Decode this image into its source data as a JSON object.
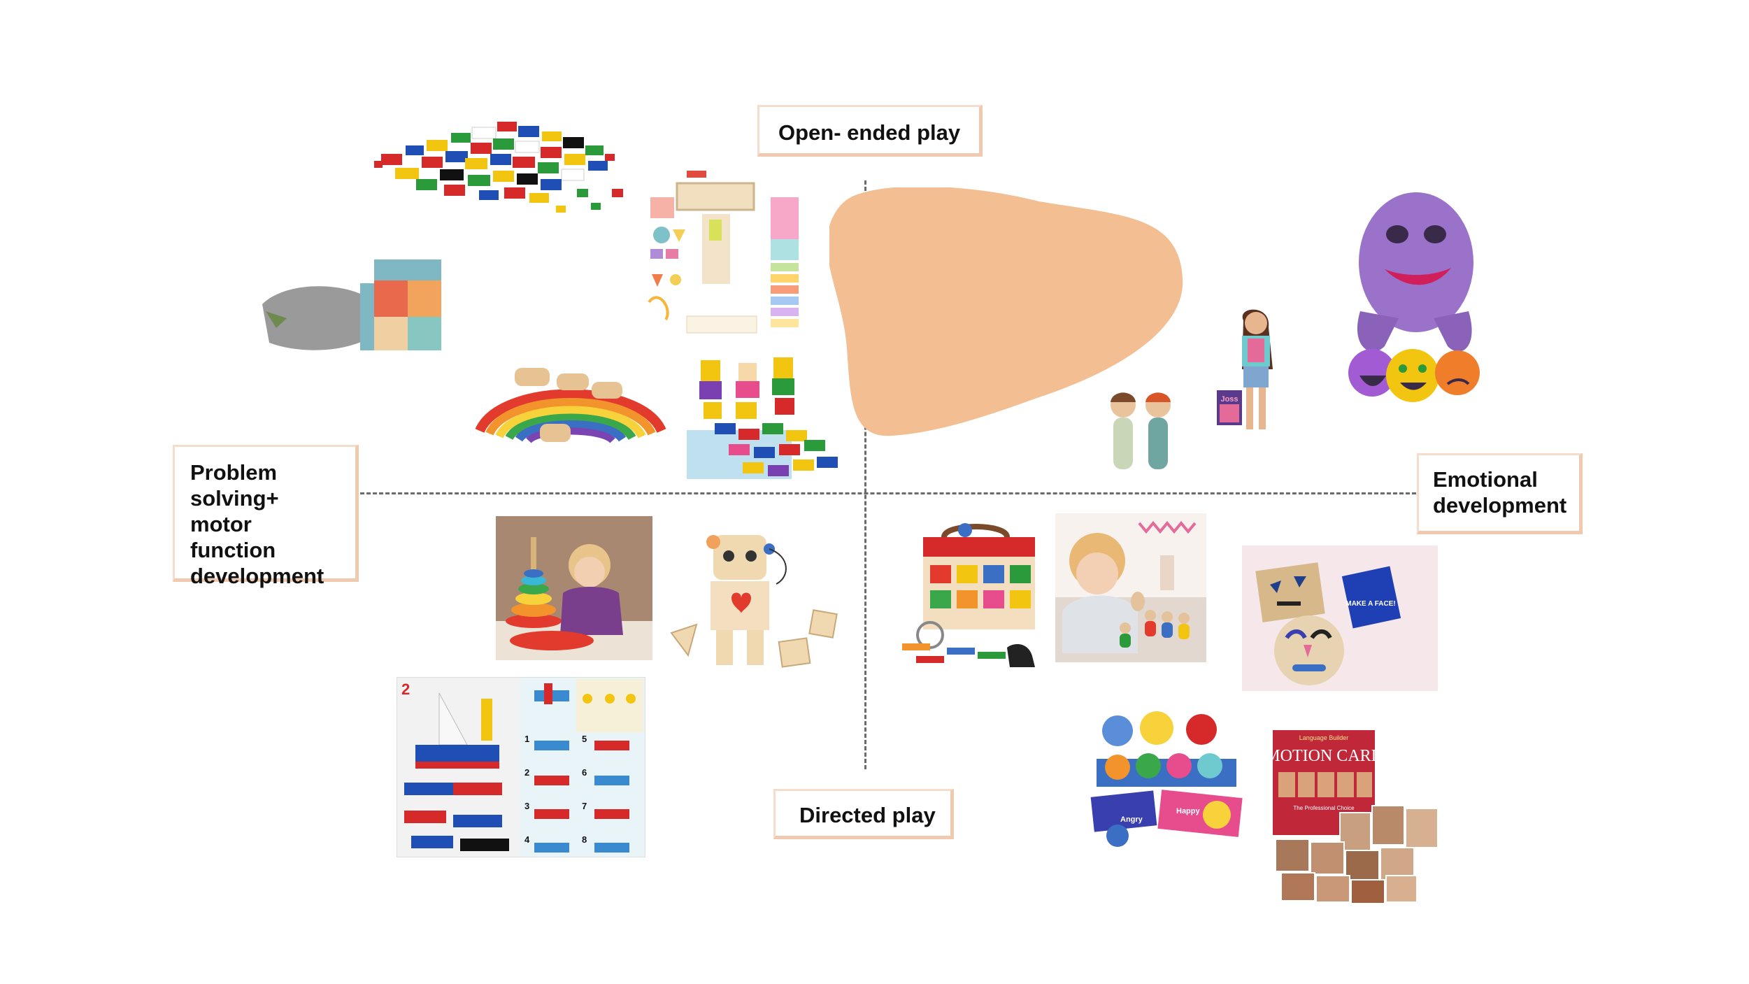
{
  "labels": {
    "open_ended": "Open- ended play",
    "problem_solving": "Problem solving+ motor function development",
    "emotional": "Emotional development",
    "directed": "Directed play"
  },
  "image_text": {
    "doll_book": "Joss",
    "make_faces": "MAKE A FACE!",
    "emotion_cards_series": "Language Builder",
    "emotion_cards_title": "EMOTION CARDS",
    "emotion_cards_subtitle": "The Professional Choice",
    "lego_page_number": "2",
    "happy_card": "Happy",
    "angry_card": "Angry"
  },
  "colors": {
    "blob": "#f3be92",
    "axis": "#6b6b6b",
    "label_border_light": "#f6dccb",
    "label_border_dark": "#f1c9ae"
  }
}
